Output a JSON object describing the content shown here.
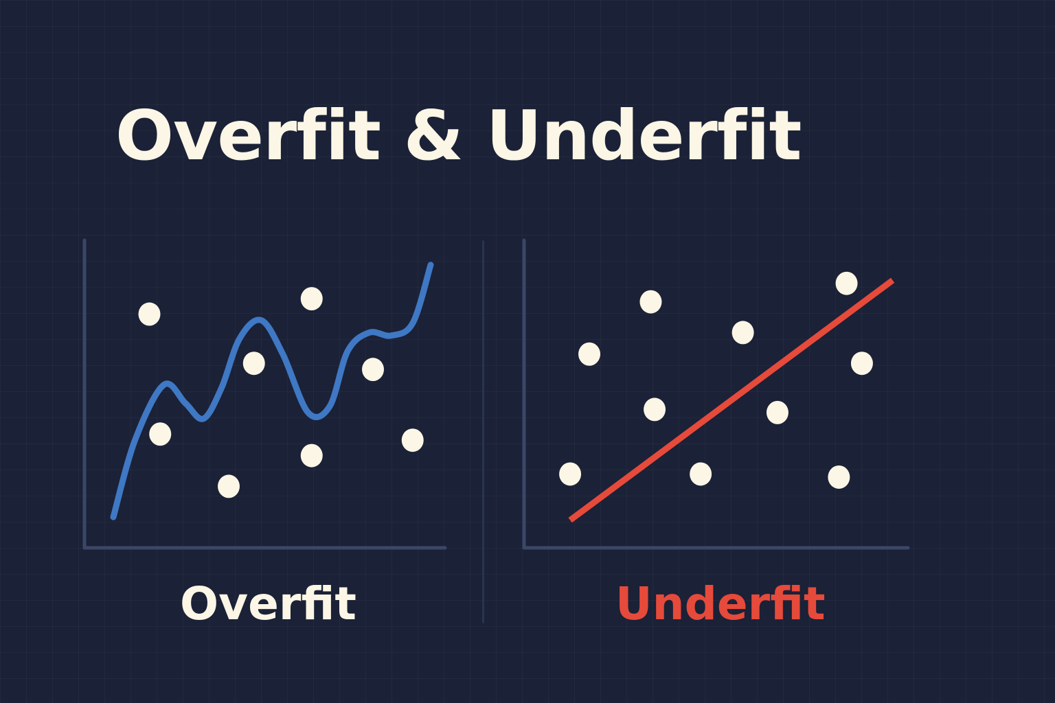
{
  "title": "Overfit & Underfit",
  "colors": {
    "background": "#1b2136",
    "text": "#fbf6e6",
    "overfit_curve": "#3f78c4",
    "underfit_line": "#e64a3b",
    "axis": "#3a4766",
    "point": "#fbf6e6"
  },
  "chart_data": [
    {
      "type": "scatter",
      "title": "Overfit",
      "xlabel": "",
      "ylabel": "",
      "xlim": [
        0,
        10
      ],
      "ylim": [
        0,
        10
      ],
      "grid": false,
      "points": {
        "x": [
          1.8,
          2.1,
          4.0,
          4.7,
          6.3,
          6.3,
          8.0,
          9.1
        ],
        "y": [
          7.6,
          3.7,
          2.0,
          6.0,
          8.1,
          3.0,
          5.8,
          3.5
        ]
      },
      "fit_curve": {
        "x": [
          0.8,
          1.4,
          2.2,
          2.8,
          3.3,
          3.8,
          4.3,
          4.9,
          5.5,
          6.2,
          6.8,
          7.3,
          7.9,
          8.5,
          9.1,
          9.6
        ],
        "y": [
          1.0,
          3.5,
          5.3,
          4.7,
          4.2,
          5.2,
          6.8,
          7.4,
          6.3,
          4.4,
          4.6,
          6.4,
          7.0,
          6.9,
          7.3,
          9.2
        ]
      }
    },
    {
      "type": "scatter",
      "title": "Underfit",
      "xlabel": "",
      "ylabel": "",
      "xlim": [
        0,
        10
      ],
      "ylim": [
        0,
        10
      ],
      "grid": false,
      "points": {
        "x": [
          1.2,
          1.7,
          3.3,
          3.4,
          4.6,
          5.7,
          6.6,
          8.2,
          8.4,
          8.8
        ],
        "y": [
          2.4,
          6.3,
          8.0,
          4.5,
          2.4,
          7.0,
          4.4,
          2.3,
          8.6,
          6.0
        ]
      },
      "fit_line": {
        "x": [
          1.2,
          9.6
        ],
        "y": [
          0.9,
          8.7
        ]
      }
    }
  ]
}
